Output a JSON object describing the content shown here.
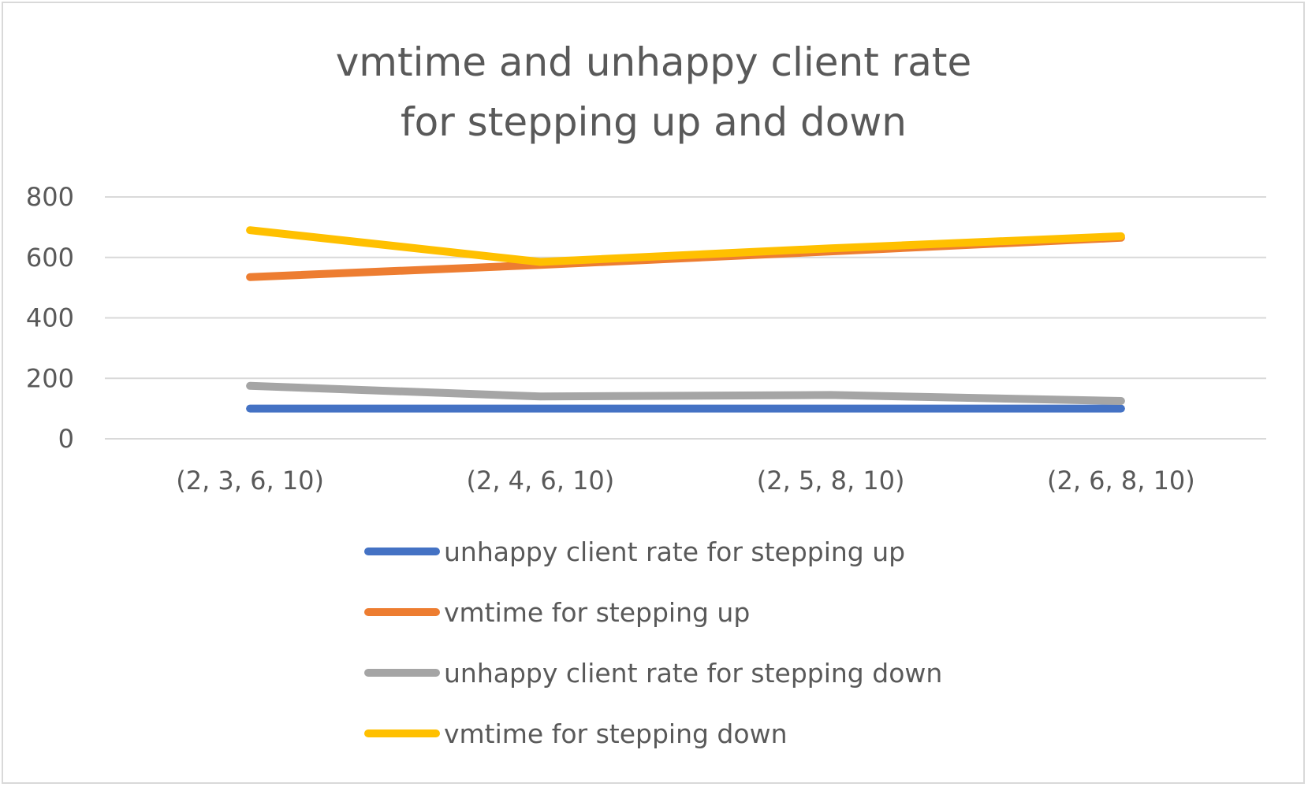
{
  "chart_data": {
    "type": "line",
    "title": "vmtime and unhappy client rate for stepping up and down",
    "title_lines": [
      "vmtime and unhappy client rate",
      "for stepping up and down"
    ],
    "xlabel": "",
    "ylabel": "",
    "categories": [
      "(2, 3, 6, 10)",
      "(2, 4, 6, 10)",
      "(2, 5, 8, 10)",
      "(2, 6, 8, 10)"
    ],
    "ylim": [
      0,
      800
    ],
    "yticks": [
      0,
      200,
      400,
      600,
      800
    ],
    "ytick_labels": [
      "0",
      "200",
      "400",
      "600",
      "800"
    ],
    "grid": true,
    "legend_position": "bottom",
    "series": [
      {
        "name": "unhappy client rate for stepping up",
        "color": "#4472c4",
        "values": [
          100,
          100,
          100,
          100
        ]
      },
      {
        "name": "vmtime for stepping up",
        "color": "#ed7d31",
        "values": [
          535,
          575,
          620,
          665
        ]
      },
      {
        "name": "unhappy client rate for stepping down",
        "color": "#a5a5a5",
        "values": [
          175,
          140,
          145,
          125
        ]
      },
      {
        "name": "vmtime for stepping down",
        "color": "#ffc000",
        "values": [
          690,
          585,
          630,
          670
        ]
      }
    ]
  }
}
